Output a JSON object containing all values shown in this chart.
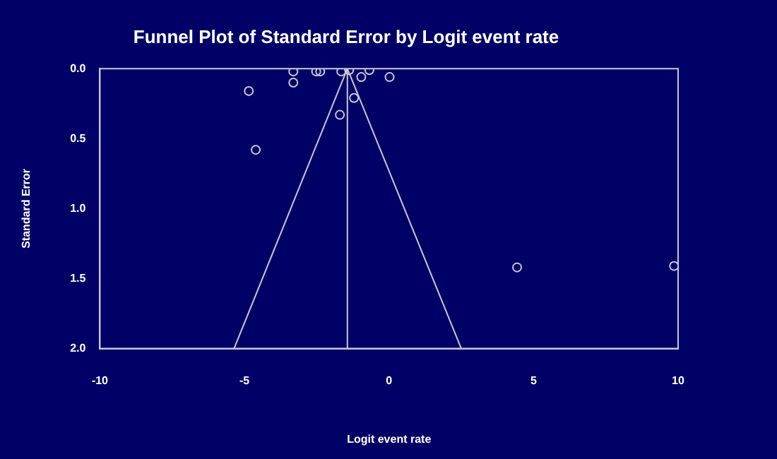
{
  "chart_data": {
    "type": "scatter",
    "title": "Funnel Plot of Standard Error by Logit event rate",
    "xlabel": "Logit event rate",
    "ylabel": "Standard Error",
    "series": [
      {
        "color": "#c8c8d8",
        "marker": "circle",
        "x": [
          -3.31,
          -2.52,
          -2.38,
          -1.65,
          -1.38,
          -0.68,
          -3.31,
          -4.85,
          -0.96,
          0.02,
          -1.21,
          -1.7,
          -4.61,
          4.43,
          9.86
        ],
        "values": [
          0.02,
          0.02,
          0.02,
          0.02,
          0.01,
          0.01,
          0.1,
          0.16,
          0.06,
          0.06,
          0.21,
          0.33,
          0.58,
          1.42,
          1.41
        ]
      },
      {
        "type": "line",
        "color": "#c8c8d8",
        "x": [
          -5.36,
          -1.44,
          2.5
        ],
        "values": [
          2,
          0,
          2
        ]
      }
    ],
    "ref_lines": [
      {
        "axis": "x",
        "value": -1.44,
        "color": "#c8c8d8"
      }
    ],
    "xlim": [
      -10,
      10
    ],
    "xticks": [
      -10,
      -5,
      0,
      5,
      10
    ],
    "ylim": [
      2,
      0
    ],
    "yticks": [
      {
        "value": 0,
        "label": "0.0"
      },
      {
        "value": 0.5,
        "label": "0.5"
      },
      {
        "value": 1,
        "label": "1.0"
      },
      {
        "value": 1.5,
        "label": "1.5"
      },
      {
        "value": 2,
        "label": "2.0"
      }
    ],
    "grid": false,
    "legend": false
  }
}
